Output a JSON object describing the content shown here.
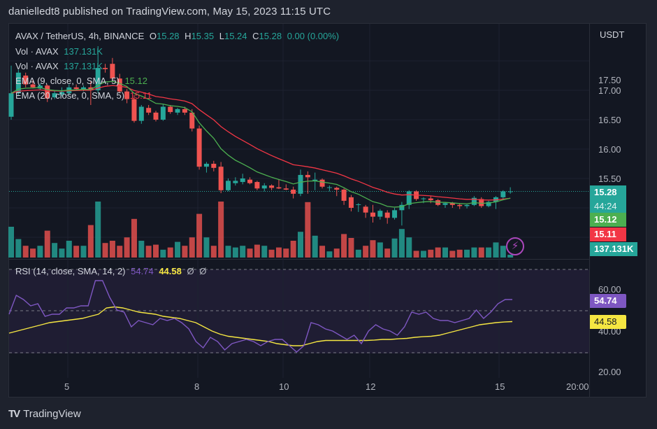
{
  "header": {
    "text": "danielledt8 published on TradingView.com, May 15, 2023 11:15 UTC"
  },
  "legend": {
    "symbol": "AVAX / TetherUS, 4h, BINANCE",
    "o_label": "O",
    "o": "15.28",
    "h_label": "H",
    "h": "15.35",
    "l_label": "L",
    "l": "15.24",
    "c_label": "C",
    "c": "15.28",
    "change": "0.00 (0.00%)",
    "vol1_label": "Vol · AVAX",
    "vol1": "137.131K",
    "vol2_label": "Vol · AVAX",
    "vol2": "137.131K",
    "ema9_label": "EMA (9, close, 0, SMA, 5)",
    "ema9": "15.12",
    "ema20_label": "EMA (20, close, 0, SMA, 5)",
    "ema20": "15.11"
  },
  "rsi_legend": {
    "label": "RSI (14, close, SMA, 14, 2)",
    "rsi": "54.74",
    "sma": "44.58",
    "x1": "Ø",
    "x2": "Ø"
  },
  "price_axis": {
    "currency": "USDT",
    "ticks": [
      "17.50",
      "17.00",
      "16.50",
      "16.00",
      "15.50"
    ]
  },
  "rsi_axis": {
    "ticks": [
      "60.00",
      "40.00",
      "20.00"
    ]
  },
  "time_axis": {
    "ticks": [
      "5",
      "8",
      "10",
      "12",
      "15",
      "20:00"
    ]
  },
  "tags": {
    "price": "15.28",
    "countdown": "44:24",
    "ema9": "15.12",
    "ema20": "15.11",
    "volume": "137.131K",
    "rsi": "54.74",
    "rsi_sma": "44.58"
  },
  "footer": {
    "logo": "TV",
    "brand": "TradingView"
  },
  "colors": {
    "up": "#26a69a",
    "down": "#ef5350",
    "ema9": "#4caf50",
    "ema20": "#f23645",
    "rsi": "#7e57c2",
    "rsi_sma": "#f5e642",
    "bg": "#131722"
  },
  "chart_data": {
    "type": "candlestick",
    "title": "AVAX / TetherUS, 4h, BINANCE",
    "ylabel": "USDT",
    "ylim": [
      15.0,
      17.8
    ],
    "x_ticks": [
      "5",
      "8",
      "10",
      "12",
      "15",
      "20:00"
    ],
    "candles": [
      {
        "o": 16.55,
        "h": 17.42,
        "l": 16.5,
        "c": 16.95,
        "v": 0.55
      },
      {
        "o": 16.95,
        "h": 17.35,
        "l": 16.9,
        "c": 17.3,
        "v": 0.33
      },
      {
        "o": 17.25,
        "h": 17.3,
        "l": 17.05,
        "c": 17.1,
        "v": 0.21
      },
      {
        "o": 17.1,
        "h": 17.18,
        "l": 17.03,
        "c": 17.05,
        "v": 0.16
      },
      {
        "o": 17.03,
        "h": 17.12,
        "l": 17.0,
        "c": 17.08,
        "v": 0.21
      },
      {
        "o": 17.08,
        "h": 17.1,
        "l": 16.8,
        "c": 16.86,
        "v": 0.48
      },
      {
        "o": 16.88,
        "h": 17.0,
        "l": 16.85,
        "c": 16.95,
        "v": 0.26
      },
      {
        "o": 16.93,
        "h": 17.05,
        "l": 16.9,
        "c": 16.97,
        "v": 0.16
      },
      {
        "o": 16.95,
        "h": 17.1,
        "l": 16.92,
        "c": 17.05,
        "v": 0.3
      },
      {
        "o": 17.05,
        "h": 17.1,
        "l": 17.0,
        "c": 17.02,
        "v": 0.21
      },
      {
        "o": 17.02,
        "h": 17.08,
        "l": 16.98,
        "c": 17.05,
        "v": 0.21
      },
      {
        "o": 17.05,
        "h": 17.15,
        "l": 16.75,
        "c": 17.0,
        "v": 0.58
      },
      {
        "o": 17.0,
        "h": 17.75,
        "l": 16.95,
        "c": 17.38,
        "v": 1.0
      },
      {
        "o": 17.38,
        "h": 17.45,
        "l": 17.3,
        "c": 17.36,
        "v": 0.26
      },
      {
        "o": 17.45,
        "h": 17.55,
        "l": 17.15,
        "c": 17.2,
        "v": 0.3
      },
      {
        "o": 17.2,
        "h": 17.28,
        "l": 16.95,
        "c": 16.98,
        "v": 0.21
      },
      {
        "o": 16.98,
        "h": 17.02,
        "l": 16.78,
        "c": 16.85,
        "v": 0.36
      },
      {
        "o": 16.85,
        "h": 16.92,
        "l": 16.45,
        "c": 16.48,
        "v": 0.69
      },
      {
        "o": 16.48,
        "h": 16.75,
        "l": 16.43,
        "c": 16.72,
        "v": 0.3
      },
      {
        "o": 16.7,
        "h": 16.75,
        "l": 16.58,
        "c": 16.62,
        "v": 0.21
      },
      {
        "o": 16.62,
        "h": 16.65,
        "l": 16.47,
        "c": 16.5,
        "v": 0.23
      },
      {
        "o": 16.5,
        "h": 16.76,
        "l": 16.48,
        "c": 16.72,
        "v": 0.14
      },
      {
        "o": 16.72,
        "h": 16.75,
        "l": 16.6,
        "c": 16.63,
        "v": 0.18
      },
      {
        "o": 16.62,
        "h": 16.7,
        "l": 16.58,
        "c": 16.68,
        "v": 0.28
      },
      {
        "o": 16.68,
        "h": 16.72,
        "l": 16.58,
        "c": 16.62,
        "v": 0.21
      },
      {
        "o": 16.62,
        "h": 16.68,
        "l": 16.3,
        "c": 16.35,
        "v": 0.36
      },
      {
        "o": 16.35,
        "h": 16.4,
        "l": 15.65,
        "c": 15.7,
        "v": 0.78
      },
      {
        "o": 15.7,
        "h": 15.78,
        "l": 15.6,
        "c": 15.75,
        "v": 0.36
      },
      {
        "o": 15.75,
        "h": 15.8,
        "l": 15.62,
        "c": 15.68,
        "v": 0.21
      },
      {
        "o": 15.7,
        "h": 15.78,
        "l": 15.25,
        "c": 15.3,
        "v": 1.0
      },
      {
        "o": 15.3,
        "h": 15.5,
        "l": 15.28,
        "c": 15.46,
        "v": 0.21
      },
      {
        "o": 15.42,
        "h": 15.52,
        "l": 15.38,
        "c": 15.46,
        "v": 0.18
      },
      {
        "o": 15.44,
        "h": 15.58,
        "l": 15.4,
        "c": 15.5,
        "v": 0.21
      },
      {
        "o": 15.48,
        "h": 15.52,
        "l": 15.4,
        "c": 15.42,
        "v": 0.16
      },
      {
        "o": 15.44,
        "h": 15.46,
        "l": 15.3,
        "c": 15.33,
        "v": 0.23
      },
      {
        "o": 15.33,
        "h": 15.42,
        "l": 15.28,
        "c": 15.38,
        "v": 0.21
      },
      {
        "o": 15.38,
        "h": 15.4,
        "l": 15.3,
        "c": 15.34,
        "v": 0.14
      },
      {
        "o": 15.35,
        "h": 15.48,
        "l": 15.32,
        "c": 15.33,
        "v": 0.18
      },
      {
        "o": 15.33,
        "h": 15.4,
        "l": 15.3,
        "c": 15.31,
        "v": 0.16
      },
      {
        "o": 15.31,
        "h": 15.36,
        "l": 15.16,
        "c": 15.24,
        "v": 0.3
      },
      {
        "o": 15.24,
        "h": 15.65,
        "l": 15.2,
        "c": 15.56,
        "v": 0.46
      },
      {
        "o": 15.56,
        "h": 15.62,
        "l": 15.24,
        "c": 15.52,
        "v": 0.99
      },
      {
        "o": 15.46,
        "h": 15.6,
        "l": 15.3,
        "c": 15.48,
        "v": 0.39
      },
      {
        "o": 15.48,
        "h": 15.5,
        "l": 15.33,
        "c": 15.36,
        "v": 0.21
      },
      {
        "o": 15.34,
        "h": 15.38,
        "l": 15.28,
        "c": 15.35,
        "v": 0.11
      },
      {
        "o": 15.34,
        "h": 15.36,
        "l": 15.2,
        "c": 15.31,
        "v": 0.16
      },
      {
        "o": 15.31,
        "h": 15.33,
        "l": 15.05,
        "c": 15.12,
        "v": 0.42
      },
      {
        "o": 15.18,
        "h": 15.22,
        "l": 14.94,
        "c": 15.0,
        "v": 0.35
      },
      {
        "o": 15.05,
        "h": 15.08,
        "l": 14.93,
        "c": 15.06,
        "v": 0.14
      },
      {
        "o": 15.02,
        "h": 15.05,
        "l": 14.83,
        "c": 14.92,
        "v": 0.21
      },
      {
        "o": 14.92,
        "h": 15.05,
        "l": 14.75,
        "c": 14.85,
        "v": 0.31
      },
      {
        "o": 14.85,
        "h": 14.98,
        "l": 14.8,
        "c": 14.95,
        "v": 0.27
      },
      {
        "o": 14.92,
        "h": 14.96,
        "l": 14.73,
        "c": 14.83,
        "v": 0.16
      },
      {
        "o": 14.83,
        "h": 15.0,
        "l": 14.8,
        "c": 14.96,
        "v": 0.34
      },
      {
        "o": 14.96,
        "h": 15.1,
        "l": 14.7,
        "c": 15.05,
        "v": 0.51
      },
      {
        "o": 15.05,
        "h": 15.3,
        "l": 14.98,
        "c": 15.28,
        "v": 0.36
      },
      {
        "o": 15.28,
        "h": 15.3,
        "l": 15.12,
        "c": 15.15,
        "v": 0.12
      },
      {
        "o": 15.15,
        "h": 15.18,
        "l": 15.08,
        "c": 15.16,
        "v": 0.12
      },
      {
        "o": 15.16,
        "h": 15.2,
        "l": 15.08,
        "c": 15.13,
        "v": 0.14
      },
      {
        "o": 15.13,
        "h": 15.15,
        "l": 15.03,
        "c": 15.05,
        "v": 0.18
      },
      {
        "o": 15.05,
        "h": 15.1,
        "l": 15.0,
        "c": 15.08,
        "v": 0.18
      },
      {
        "o": 15.08,
        "h": 15.1,
        "l": 15.0,
        "c": 15.05,
        "v": 0.12
      },
      {
        "o": 15.05,
        "h": 15.08,
        "l": 14.98,
        "c": 15.03,
        "v": 0.14
      },
      {
        "o": 15.03,
        "h": 15.06,
        "l": 14.99,
        "c": 15.05,
        "v": 0.14
      },
      {
        "o": 15.05,
        "h": 15.2,
        "l": 15.03,
        "c": 15.17,
        "v": 0.18
      },
      {
        "o": 15.15,
        "h": 15.18,
        "l": 15.0,
        "c": 15.03,
        "v": 0.18
      },
      {
        "o": 15.03,
        "h": 15.12,
        "l": 15.01,
        "c": 15.1,
        "v": 0.18
      },
      {
        "o": 15.1,
        "h": 15.2,
        "l": 14.98,
        "c": 15.18,
        "v": 0.27
      },
      {
        "o": 15.18,
        "h": 15.3,
        "l": 15.15,
        "c": 15.28,
        "v": 0.21
      },
      {
        "o": 15.28,
        "h": 15.35,
        "l": 15.24,
        "c": 15.28,
        "v": 0.05
      }
    ],
    "rsi_series": {
      "name": "RSI",
      "last": 54.74
    },
    "rsi_sma_series": {
      "name": "RSI SMA",
      "last": 44.58
    },
    "rsi_levels": [
      70,
      50,
      30
    ]
  }
}
